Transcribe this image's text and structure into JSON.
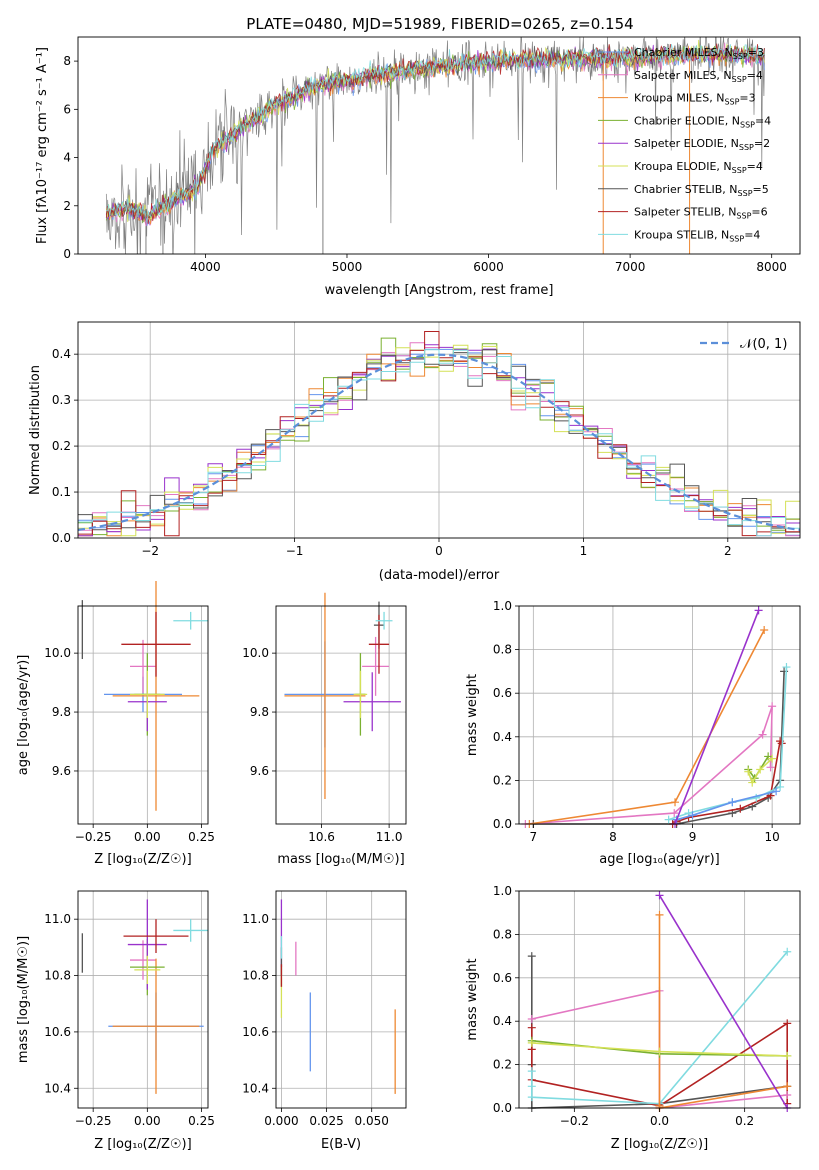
{
  "figure": {
    "title": "PLATE=0480, MJD=51989, FIBERID=0265, z=0.154"
  },
  "colors": {
    "observed": "#808080",
    "models": [
      "#6495ed",
      "#e377c2",
      "#ee8833",
      "#7ab030",
      "#9932cc",
      "#d4e157",
      "#555555",
      "#b22222",
      "#80dbe0"
    ],
    "normal_curve": "#5b8fd9"
  },
  "legend": {
    "models": [
      {
        "name": "Chabrier MILES",
        "n": "=3"
      },
      {
        "name": "Salpeter MILES",
        "n": "=4"
      },
      {
        "name": "Kroupa MILES",
        "n": "=3"
      },
      {
        "name": "Chabrier ELODIE",
        "n": "=4"
      },
      {
        "name": "Salpeter ELODIE",
        "n": "=2"
      },
      {
        "name": "Kroupa ELODIE",
        "n": "=4"
      },
      {
        "name": "Chabrier STELIB",
        "n": "=5"
      },
      {
        "name": "Salpeter STELIB",
        "n": "=6"
      },
      {
        "name": "Kroupa STELIB",
        "n": "=4"
      }
    ],
    "n_label": "N",
    "n_sub": "SSP",
    "normal_label": "𝒩(0, 1)"
  },
  "axes": {
    "spectrum": {
      "xlabel": "wavelength [Angstrom, rest frame]",
      "ylabel": "Flux [fλ10⁻¹⁷ erg cm⁻² s⁻¹ A⁻¹]",
      "xticks": [
        "4000",
        "5000",
        "6000",
        "7000",
        "8000"
      ],
      "yticks": [
        "0",
        "2",
        "4",
        "6",
        "8"
      ]
    },
    "residuals": {
      "xlabel": "(data-model)/error",
      "ylabel": "Normed distribution",
      "xticks": [
        "−2",
        "−1",
        "0",
        "1",
        "2"
      ],
      "yticks": [
        "0.0",
        "0.1",
        "0.2",
        "0.3",
        "0.4"
      ]
    },
    "z_age": {
      "xlabel": "Z [log₁₀(Z/Z☉)]",
      "ylabel": "age  [log₁₀(age/yr)]",
      "xticks": [
        "−0.25",
        "0.00",
        "0.25"
      ],
      "yticks": [
        "9.6",
        "9.8",
        "10.0"
      ]
    },
    "mass_age": {
      "xlabel": "mass [log₁₀(M/M☉)]",
      "xticks": [
        "10.6",
        "11.0"
      ],
      "yticks": [
        "9.6",
        "9.8",
        "10.0"
      ]
    },
    "age_weight": {
      "xlabel": "age  [log₁₀(age/yr)]",
      "ylabel": "mass weight",
      "xticks": [
        "7",
        "8",
        "9",
        "10"
      ],
      "yticks": [
        "0.0",
        "0.2",
        "0.4",
        "0.6",
        "0.8",
        "1.0"
      ]
    },
    "z_mass": {
      "xlabel": "Z [log₁₀(Z/Z☉)]",
      "ylabel": "mass [log₁₀(M/M☉)]",
      "xticks": [
        "−0.25",
        "0.00",
        "0.25"
      ],
      "yticks": [
        "10.4",
        "10.6",
        "10.8",
        "11.0"
      ]
    },
    "ebv_mass": {
      "xlabel": "E(B-V)",
      "xticks": [
        "0.000",
        "0.025",
        "0.050"
      ],
      "yticks": [
        "10.4",
        "10.6",
        "10.8",
        "11.0"
      ]
    },
    "z_weight": {
      "xlabel": "Z [log₁₀(Z/Z☉)]",
      "ylabel": "mass weight",
      "xticks": [
        "−0.2",
        "0.0",
        "0.2"
      ],
      "yticks": [
        "0.0",
        "0.2",
        "0.4",
        "0.6",
        "0.8",
        "1.0"
      ]
    }
  },
  "chart_data": [
    {
      "panel": "spectrum",
      "type": "line",
      "xlim": [
        3100,
        8200
      ],
      "ylim": [
        0,
        9
      ],
      "continuum": {
        "x": [
          3300,
          3450,
          3600,
          3800,
          3950,
          4050,
          4250,
          4500,
          4800,
          5100,
          5400,
          5700,
          6000,
          6300,
          6600,
          6900,
          7200,
          7500,
          7800,
          7950
        ],
        "y": [
          1.65,
          1.9,
          1.55,
          2.3,
          2.8,
          4.3,
          5.2,
          6.2,
          7.0,
          7.3,
          7.6,
          7.8,
          8.0,
          8.05,
          8.1,
          8.1,
          8.2,
          8.3,
          8.25,
          8.2
        ]
      },
      "observed_range": [
        3300,
        7950
      ]
    },
    {
      "panel": "residuals",
      "type": "line",
      "xlim": [
        -2.5,
        2.5
      ],
      "ylim": [
        0,
        0.47
      ],
      "bin_width": 0.1,
      "normal_curve": {
        "mean": 0,
        "sigma": 1
      }
    },
    {
      "panel": "z_age",
      "type": "scatter",
      "xlim": [
        -0.32,
        0.28
      ],
      "ylim": [
        9.42,
        10.16
      ],
      "points": [
        {
          "x": -0.02,
          "y": 9.86,
          "xerr": 0.18,
          "yerr": 0.06,
          "c": 0
        },
        {
          "x": -0.02,
          "y": 9.955,
          "xerr": 0.06,
          "yerr": 0.09,
          "c": 1
        },
        {
          "x": 0.04,
          "y": 9.855,
          "xerr": 0.2,
          "yerr": 0.39,
          "c": 2
        },
        {
          "x": 0.0,
          "y": 9.86,
          "xerr": 0.06,
          "yerr": 0.14,
          "c": 3
        },
        {
          "x": 0.0,
          "y": 9.835,
          "xerr": 0.09,
          "yerr": 0.1,
          "c": 4
        },
        {
          "x": 0.0,
          "y": 9.86,
          "xerr": 0.08,
          "yerr": 0.08,
          "c": 5
        },
        {
          "x": -0.3,
          "y": 10.08,
          "xerr": 0.0,
          "yerr": 0.1,
          "c": 6
        },
        {
          "x": 0.04,
          "y": 10.03,
          "xerr": 0.16,
          "yerr": 0.11,
          "c": 7
        },
        {
          "x": 0.2,
          "y": 10.11,
          "xerr": 0.08,
          "yerr": 0.03,
          "c": 8
        }
      ]
    },
    {
      "panel": "mass_age",
      "type": "scatter",
      "xlim": [
        10.33,
        11.1
      ],
      "ylim": [
        9.42,
        10.16
      ],
      "points": [
        {
          "x": 10.62,
          "y": 9.86,
          "xerr": 0.24,
          "yerr": 0.18,
          "c": 0
        },
        {
          "x": 10.92,
          "y": 9.955,
          "xerr": 0.08,
          "yerr": 0.1,
          "c": 1
        },
        {
          "x": 10.62,
          "y": 9.855,
          "xerr": 0.24,
          "yerr": 0.35,
          "c": 2
        },
        {
          "x": 10.83,
          "y": 9.86,
          "xerr": 0.03,
          "yerr": 0.14,
          "c": 3
        },
        {
          "x": 10.9,
          "y": 9.835,
          "xerr": 0.17,
          "yerr": 0.1,
          "c": 4
        },
        {
          "x": 10.83,
          "y": 9.86,
          "xerr": 0.04,
          "yerr": 0.08,
          "c": 5
        },
        {
          "x": 10.94,
          "y": 10.095,
          "xerr": 0.03,
          "yerr": 0.08,
          "c": 6
        },
        {
          "x": 10.94,
          "y": 10.03,
          "xerr": 0.06,
          "yerr": 0.1,
          "c": 7
        },
        {
          "x": 10.97,
          "y": 10.11,
          "xerr": 0.05,
          "yerr": 0.03,
          "c": 8
        }
      ]
    },
    {
      "panel": "age_weight",
      "type": "line",
      "xlim": [
        6.82,
        10.35
      ],
      "ylim": [
        0,
        1
      ],
      "series": [
        {
          "c": 6,
          "x": [
            7.0,
            8.8,
            9.5,
            9.75,
            9.95,
            10.1,
            10.15
          ],
          "y": [
            0.0,
            0.0,
            0.05,
            0.08,
            0.12,
            0.2,
            0.7
          ]
        },
        {
          "c": 7,
          "x": [
            8.75,
            8.8,
            8.95,
            9.6,
            9.98,
            10.1,
            10.12
          ],
          "y": [
            0.0,
            0.01,
            0.03,
            0.07,
            0.13,
            0.38,
            0.37
          ]
        },
        {
          "c": 8,
          "x": [
            8.7,
            8.95,
            9.5,
            9.8,
            10.1,
            10.18
          ],
          "y": [
            0.02,
            0.05,
            0.1,
            0.12,
            0.17,
            0.72
          ]
        },
        {
          "c": 0,
          "x": [
            8.8,
            9.0,
            9.5,
            10.05
          ],
          "y": [
            0.02,
            0.04,
            0.1,
            0.15
          ]
        },
        {
          "c": 1,
          "x": [
            6.9,
            8.77,
            9.88,
            10.0,
            9.98
          ],
          "y": [
            0.0,
            0.05,
            0.41,
            0.54,
            0.26
          ]
        },
        {
          "c": 2,
          "x": [
            6.95,
            8.78,
            9.9
          ],
          "y": [
            0.0,
            0.1,
            0.89
          ]
        },
        {
          "c": 3,
          "x": [
            9.7,
            9.78,
            9.95
          ],
          "y": [
            0.25,
            0.21,
            0.31
          ]
        },
        {
          "c": 5,
          "x": [
            9.7,
            9.75,
            9.85,
            10.0
          ],
          "y": [
            0.24,
            0.19,
            0.25,
            0.3
          ]
        },
        {
          "c": 4,
          "x": [
            8.78,
            9.83
          ],
          "y": [
            0.0,
            0.98
          ]
        }
      ]
    },
    {
      "panel": "z_mass",
      "type": "scatter",
      "xlim": [
        -0.32,
        0.28
      ],
      "ylim": [
        10.33,
        11.1
      ],
      "points": [
        {
          "x": 0.04,
          "y": 10.62,
          "xerr": 0.22,
          "yerr": 0.12,
          "c": 0
        },
        {
          "x": -0.02,
          "y": 10.855,
          "xerr": 0.06,
          "yerr": 0.07,
          "c": 1
        },
        {
          "x": 0.04,
          "y": 10.62,
          "xerr": 0.2,
          "yerr": 0.24,
          "c": 2
        },
        {
          "x": 0.0,
          "y": 10.83,
          "xerr": 0.08,
          "yerr": 0.1,
          "c": 3
        },
        {
          "x": 0.0,
          "y": 10.91,
          "xerr": 0.09,
          "yerr": 0.16,
          "c": 4
        },
        {
          "x": 0.0,
          "y": 10.82,
          "xerr": 0.06,
          "yerr": 0.05,
          "c": 5
        },
        {
          "x": -0.3,
          "y": 10.88,
          "xerr": 0.0,
          "yerr": 0.07,
          "c": 6
        },
        {
          "x": 0.04,
          "y": 10.94,
          "xerr": 0.15,
          "yerr": 0.06,
          "c": 7
        },
        {
          "x": 0.2,
          "y": 10.96,
          "xerr": 0.08,
          "yerr": 0.04,
          "c": 8
        }
      ]
    },
    {
      "panel": "ebv_mass",
      "type": "scatter",
      "xlim": [
        -0.003,
        0.069
      ],
      "ylim": [
        10.33,
        11.1
      ],
      "points": [
        {
          "x": 0.016,
          "y": 10.6,
          "xerr": 0,
          "yerr": 0.14,
          "c": 0
        },
        {
          "x": 0.008,
          "y": 10.86,
          "xerr": 0,
          "yerr": 0.06,
          "c": 1
        },
        {
          "x": 0.063,
          "y": 10.53,
          "xerr": 0,
          "yerr": 0.15,
          "c": 2
        },
        {
          "x": 0.0,
          "y": 10.8,
          "xerr": 0,
          "yerr": 0.04,
          "c": 3
        },
        {
          "x": 0.0,
          "y": 10.95,
          "xerr": 0,
          "yerr": 0.12,
          "c": 4
        },
        {
          "x": 0.0,
          "y": 10.72,
          "xerr": 0,
          "yerr": 0.07,
          "c": 5
        },
        {
          "x": 0.0,
          "y": 10.85,
          "xerr": 0,
          "yerr": 0.05,
          "c": 6
        },
        {
          "x": 0.0,
          "y": 10.8,
          "xerr": 0,
          "yerr": 0.04,
          "c": 7
        },
        {
          "x": 0.0,
          "y": 10.9,
          "xerr": 0,
          "yerr": 0.04,
          "c": 8
        }
      ]
    },
    {
      "panel": "z_weight",
      "type": "line",
      "xlim": [
        -0.33,
        0.33
      ],
      "ylim": [
        0,
        1
      ],
      "series": [
        {
          "c": 6,
          "x": [
            -0.3,
            -0.3,
            -0.3,
            0.0,
            0.3
          ],
          "y": [
            0.7,
            0.2,
            0.0,
            0.02,
            0.1
          ]
        },
        {
          "c": 7,
          "x": [
            -0.3,
            -0.3,
            -0.3,
            0.0,
            0.3,
            0.3
          ],
          "y": [
            0.37,
            0.27,
            0.13,
            0.01,
            0.39,
            0.02
          ]
        },
        {
          "c": 8,
          "x": [
            -0.3,
            -0.3,
            -0.3,
            0.0,
            0.3
          ],
          "y": [
            0.17,
            0.1,
            0.05,
            0.02,
            0.72
          ]
        },
        {
          "c": 1,
          "x": [
            -0.3,
            0.0,
            0.0,
            0.0,
            0.3
          ],
          "y": [
            0.41,
            0.54,
            0.26,
            0.0,
            0.06
          ]
        },
        {
          "c": 2,
          "x": [
            0.0,
            0.0,
            0.0,
            0.3
          ],
          "y": [
            0.89,
            0.01,
            0.0,
            0.1
          ]
        },
        {
          "c": 3,
          "x": [
            -0.3,
            0.0,
            0.3
          ],
          "y": [
            0.31,
            0.25,
            0.24
          ]
        },
        {
          "c": 5,
          "x": [
            -0.3,
            0.0,
            0.3
          ],
          "y": [
            0.3,
            0.26,
            0.24
          ]
        },
        {
          "c": 4,
          "x": [
            0.0,
            0.3
          ],
          "y": [
            0.98,
            0.0
          ]
        }
      ]
    }
  ]
}
